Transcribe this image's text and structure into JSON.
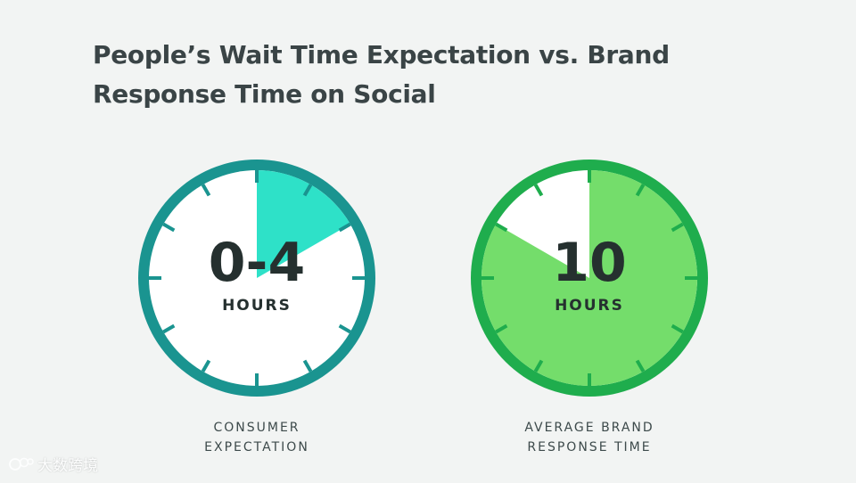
{
  "title": "People’s Wait Time Expectation vs. Brand Response Time on Social",
  "chart_data": {
    "type": "gauge",
    "max": 60,
    "gauges": [
      {
        "value_label": "0-4",
        "unit_label": "HOURS",
        "caption": [
          "CONSUMER",
          "EXPECTATION"
        ],
        "fill_value": 10,
        "ring_color": "#1a9490",
        "fill_color": "#2ee1c8",
        "face_color": "#ffffff",
        "tick_color": "#1a9490"
      },
      {
        "value_label": "10",
        "unit_label": "HOURS",
        "caption": [
          "AVERAGE BRAND",
          "RESPONSE TIME"
        ],
        "fill_value": 50,
        "ring_color": "#1fad4d",
        "fill_color": "#74dd6b",
        "face_color": "#ffffff",
        "tick_color": "#1fad4d"
      }
    ]
  },
  "watermark": {
    "logo_icon": "dashu-logo-icon",
    "text": "大数跨境"
  }
}
